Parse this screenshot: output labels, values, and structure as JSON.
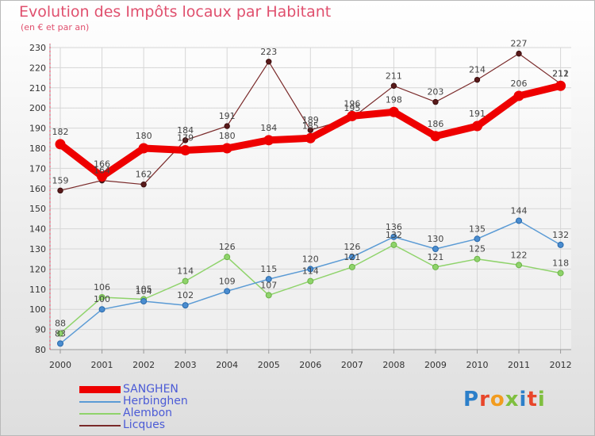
{
  "header": {
    "title": "Evolution des Impôts locaux par Habitant",
    "subtitle": "(en € et par an)"
  },
  "logo": {
    "text": "Proxiti",
    "letters": [
      {
        "ch": "P",
        "color": "#2c7fc9"
      },
      {
        "ch": "r",
        "color": "#e8462a"
      },
      {
        "ch": "o",
        "color": "#f29c1f"
      },
      {
        "ch": "x",
        "color": "#7fbf3f"
      },
      {
        "ch": "i",
        "color": "#2c7fc9"
      },
      {
        "ch": "t",
        "color": "#e8462a"
      },
      {
        "ch": "i",
        "color": "#7fbf3f"
      }
    ]
  },
  "chart_data": {
    "type": "line",
    "title": "Evolution des Impôts locaux par Habitant",
    "subtitle": "(en € et par an)",
    "xlabel": "",
    "ylabel": "",
    "x": [
      "2000",
      "2001",
      "2002",
      "2003",
      "2004",
      "2005",
      "2006",
      "2007",
      "2008",
      "2009",
      "2010",
      "2011",
      "2012"
    ],
    "ylim": [
      80,
      230
    ],
    "yticks": [
      80,
      90,
      100,
      110,
      120,
      130,
      140,
      150,
      160,
      170,
      180,
      190,
      200,
      210,
      220,
      230
    ],
    "grid": true,
    "legend_position": "bottom-left",
    "series": [
      {
        "name": "SANGHEN",
        "color": "#ee0000",
        "values": [
          182,
          166,
          180,
          179,
          180,
          184,
          185,
          196,
          198,
          186,
          191,
          206,
          211
        ],
        "labels": [
          "182",
          "166",
          "180",
          "179",
          "180",
          "184",
          "185",
          "196",
          "198",
          "186",
          "191",
          "206",
          "211"
        ]
      },
      {
        "name": "Herbinghen",
        "color": "#5b9bd5",
        "values": [
          83,
          100,
          104,
          102,
          109,
          115,
          120,
          126,
          136,
          130,
          135,
          144,
          132
        ],
        "labels": [
          "83",
          "100",
          "104",
          "102",
          "109",
          "115",
          "120",
          "126",
          "136",
          "130",
          "135",
          "144",
          "132"
        ]
      },
      {
        "name": "Alembon",
        "color": "#8fd36b",
        "values": [
          88,
          106,
          105,
          114,
          126,
          107,
          114,
          121,
          132,
          121,
          125,
          122,
          118
        ],
        "labels": [
          "88",
          "106",
          "105",
          "114",
          "126",
          "107",
          "114",
          "121",
          "132",
          "121",
          "125",
          "122",
          "118"
        ]
      },
      {
        "name": "Licques",
        "color": "#7a2a2a",
        "values": [
          159,
          164,
          162,
          184,
          191,
          223,
          189,
          195,
          211,
          203,
          214,
          227,
          212
        ],
        "labels": [
          "159",
          "164",
          "162",
          "184",
          "191",
          "223",
          "189",
          "195",
          "211",
          "203",
          "214",
          "227",
          "212"
        ]
      }
    ]
  }
}
